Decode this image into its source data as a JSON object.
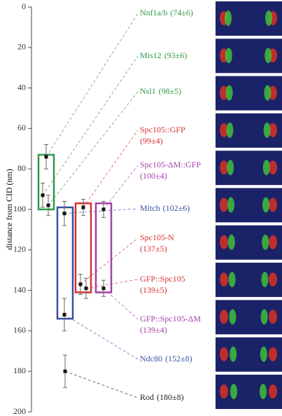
{
  "chart_data": {
    "type": "scatter",
    "y_label": "distance from CID (nm)",
    "ylim": [
      0,
      200
    ],
    "yticks": [
      0,
      20,
      40,
      60,
      80,
      100,
      120,
      140,
      160,
      180,
      200
    ],
    "boxes": [
      {
        "color": "#2e9a4a",
        "range": [
          73,
          100
        ]
      },
      {
        "color": "#3a4fa0",
        "range": [
          99,
          154
        ]
      },
      {
        "color": "#d8302e",
        "range": [
          97,
          141
        ]
      },
      {
        "color": "#a040a8",
        "range": [
          97,
          141
        ]
      }
    ],
    "markers": [
      {
        "name": "Nnf1a/b",
        "value_label": "(74±6)",
        "value": 74,
        "error": 6,
        "color": "#2e9a4a"
      },
      {
        "name": "Mis12",
        "value_label": "(93±6)",
        "value": 93,
        "error": 6,
        "color": "#2e9a4a"
      },
      {
        "name": "Nsl1",
        "value_label": "(98±5)",
        "value": 98,
        "error": 5,
        "color": "#2e9a4a"
      },
      {
        "name": "Spc105::GFP",
        "value_label": "(99±4)",
        "value": 99,
        "error": 4,
        "color": "#d8302e"
      },
      {
        "name": "Spc105-ΔM::GFP",
        "value_label": "(100±4)",
        "value": 100,
        "error": 4,
        "color": "#a040a8"
      },
      {
        "name": "Mitch",
        "value_label": "(102±6)",
        "value": 102,
        "error": 6,
        "color": "#3a4fa0"
      },
      {
        "name": "Spc105-N",
        "value_label": "(137±5)",
        "value": 137,
        "error": 5,
        "color": "#d8302e"
      },
      {
        "name": "GFP::Spc105",
        "value_label": "(139±5)",
        "value": 139,
        "error": 5,
        "color": "#d8302e"
      },
      {
        "name": "GFP::Spc105-ΔM",
        "value_label": "(139±4)",
        "value": 139,
        "error": 4,
        "color": "#a040a8"
      },
      {
        "name": "Ndc80",
        "value_label": "(152±8)",
        "value": 152,
        "error": 8,
        "color": "#3a4fa0"
      },
      {
        "name": "Rod",
        "value_label": "(180±8)",
        "value": 180,
        "error": 8,
        "color": "#222222"
      }
    ]
  }
}
